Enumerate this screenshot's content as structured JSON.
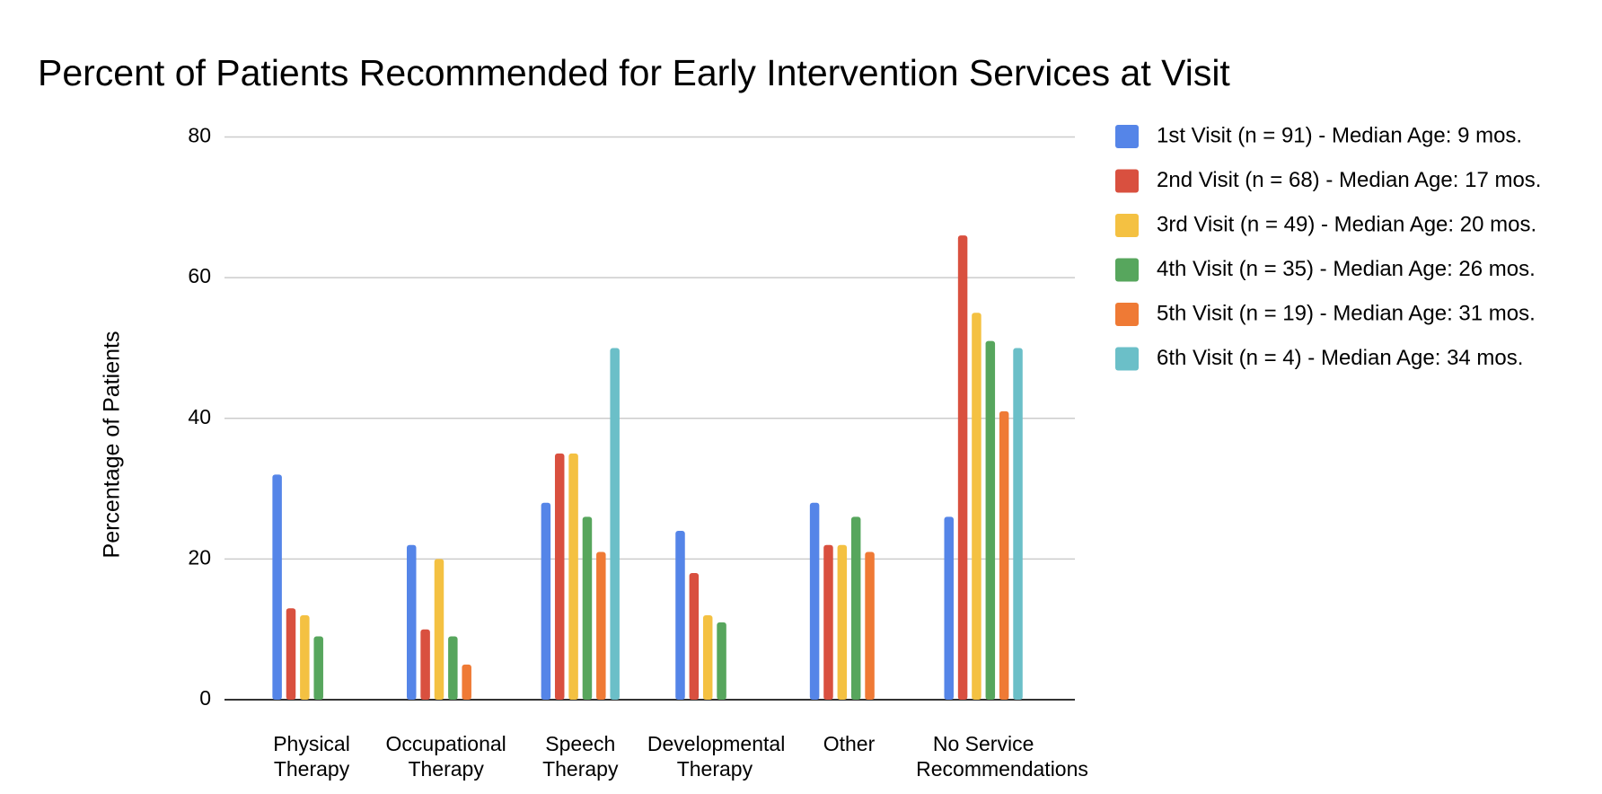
{
  "chart_data": {
    "type": "bar",
    "title": "Percent of Patients Recommended for Early Intervention Services at Visit",
    "y_label": "Percentage of Patients",
    "categories": [
      "Physical Therapy",
      "Occupational Therapy",
      "Speech Therapy",
      "Developmental Therapy",
      "Other",
      "No Service Recommendations"
    ],
    "series": [
      {
        "name": "1st Visit (n = 91) - Median Age: 9 mos.",
        "color": "#5585e8",
        "values": [
          32,
          22,
          28,
          24,
          28,
          26
        ]
      },
      {
        "name": "2nd Visit (n = 68) - Median Age: 17 mos.",
        "color": "#d9503f",
        "values": [
          13,
          10,
          35,
          18,
          22,
          66
        ]
      },
      {
        "name": "3rd Visit (n = 49) - Median Age: 20 mos.",
        "color": "#f4c142",
        "values": [
          12,
          20,
          35,
          12,
          22,
          55
        ]
      },
      {
        "name": "4th Visit (n = 35) - Median Age: 26 mos.",
        "color": "#57a65d",
        "values": [
          9,
          9,
          26,
          11,
          26,
          51
        ]
      },
      {
        "name": "5th Visit (n = 19) - Median Age: 31 mos.",
        "color": "#ef7a35",
        "values": [
          0,
          5,
          21,
          0,
          21,
          41
        ]
      },
      {
        "name": "6th Visit (n = 4) - Median Age: 34 mos.",
        "color": "#6bbfc8",
        "values": [
          0,
          0,
          50,
          0,
          0,
          50
        ]
      }
    ],
    "ylim": [
      0,
      80
    ],
    "yticks": [
      0,
      20,
      40,
      60,
      80
    ],
    "grid": true,
    "legend": "right"
  }
}
